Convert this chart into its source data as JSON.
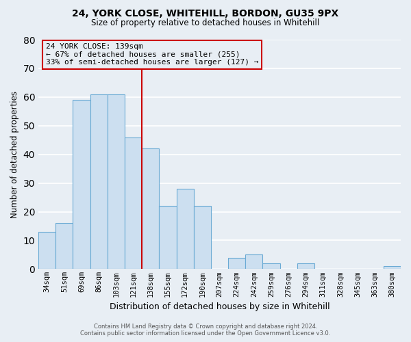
{
  "title1": "24, YORK CLOSE, WHITEHILL, BORDON, GU35 9PX",
  "title2": "Size of property relative to detached houses in Whitehill",
  "xlabel": "Distribution of detached houses by size in Whitehill",
  "ylabel": "Number of detached properties",
  "bin_labels": [
    "34sqm",
    "51sqm",
    "69sqm",
    "86sqm",
    "103sqm",
    "121sqm",
    "138sqm",
    "155sqm",
    "172sqm",
    "190sqm",
    "207sqm",
    "224sqm",
    "242sqm",
    "259sqm",
    "276sqm",
    "294sqm",
    "311sqm",
    "328sqm",
    "345sqm",
    "363sqm",
    "380sqm"
  ],
  "bar_heights": [
    13,
    16,
    59,
    61,
    61,
    46,
    42,
    22,
    28,
    22,
    0,
    4,
    5,
    2,
    0,
    2,
    0,
    0,
    0,
    0,
    1
  ],
  "bar_color": "#ccdff0",
  "bar_edge_color": "#6aaad4",
  "vline_color": "#cc0000",
  "annotation_line1": "24 YORK CLOSE: 139sqm",
  "annotation_line2": "← 67% of detached houses are smaller (255)",
  "annotation_line3": "33% of semi-detached houses are larger (127) →",
  "ylim": [
    0,
    80
  ],
  "yticks": [
    0,
    10,
    20,
    30,
    40,
    50,
    60,
    70,
    80
  ],
  "footer1": "Contains HM Land Registry data © Crown copyright and database right 2024.",
  "footer2": "Contains public sector information licensed under the Open Government Licence v3.0.",
  "background_color": "#e8eef4",
  "grid_color": "#ffffff"
}
